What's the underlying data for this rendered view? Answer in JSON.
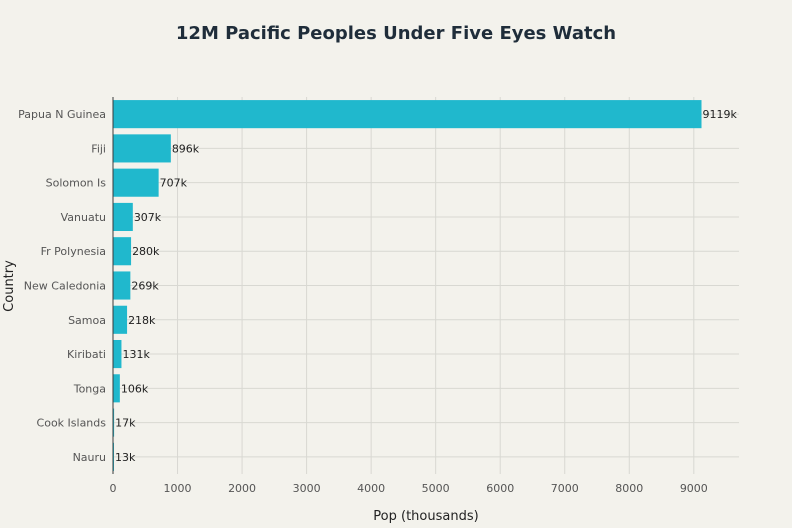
{
  "chart_data": {
    "type": "bar",
    "orientation": "horizontal",
    "title": "12M Pacific Peoples Under Five Eyes Watch",
    "xlabel": "Pop (thousands)",
    "ylabel": "Country",
    "xlim": [
      0,
      9700
    ],
    "x_ticks": [
      0,
      1000,
      2000,
      3000,
      4000,
      5000,
      6000,
      7000,
      8000,
      9000
    ],
    "grid": true,
    "bar_color": "#20b8cd",
    "categories": [
      "Papua N Guinea",
      "Fiji",
      "Solomon Is",
      "Vanuatu",
      "Fr Polynesia",
      "New Caledonia",
      "Samoa",
      "Kiribati",
      "Tonga",
      "Cook Islands",
      "Nauru"
    ],
    "values": [
      9119,
      896,
      707,
      307,
      280,
      269,
      218,
      131,
      106,
      17,
      13
    ],
    "data_labels": [
      "9119k",
      "896k",
      "707k",
      "307k",
      "280k",
      "269k",
      "218k",
      "131k",
      "106k",
      "17k",
      "13k"
    ]
  },
  "colors": {
    "background": "#f3f2ec",
    "bar": "#20b8cd",
    "grid": "#d8d8d2",
    "title": "#1f2d3a"
  }
}
